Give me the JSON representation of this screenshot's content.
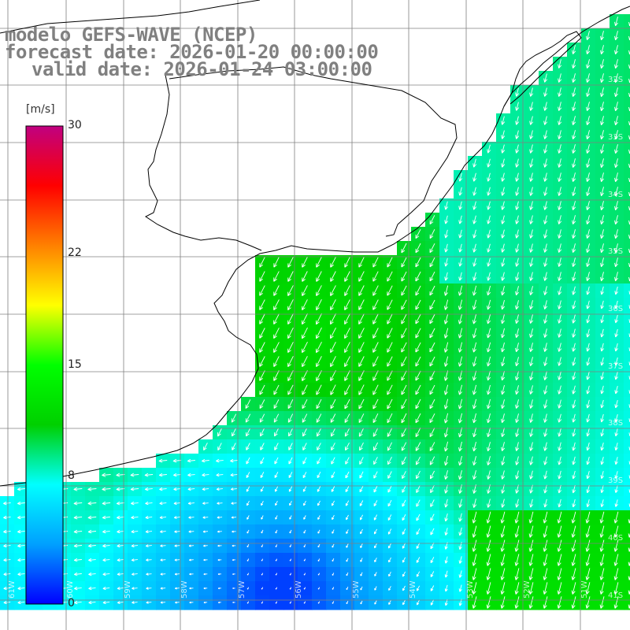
{
  "title": {
    "line1": "modelo GEFS-WAVE (NCEP)",
    "line2": "forecast date: 2026-01-20 00:00:00",
    "line3": "valid date: 2026-01-24 03:00:00"
  },
  "colorbar": {
    "unit": "[m/s]",
    "min": 0,
    "max": 30,
    "ticks": [
      "30",
      "22",
      "15",
      "8",
      "0"
    ],
    "tick_values": [
      30,
      22,
      15,
      8,
      0
    ],
    "stops": [
      "#0000ff",
      "#00a0ff",
      "#00ffff",
      "#00d000",
      "#00ff00",
      "#ffff00",
      "#ff8000",
      "#ff0000",
      "#c00080"
    ]
  },
  "grid": {
    "lat_labels": [
      "32S",
      "33S",
      "34S",
      "35S",
      "36S",
      "37S",
      "38S",
      "39S",
      "40S",
      "41S"
    ],
    "lon_labels": [
      "61W",
      "60W",
      "59W",
      "58W",
      "57W",
      "56W",
      "55W",
      "54W",
      "53W",
      "52W",
      "51W"
    ]
  },
  "colors": {
    "land": "#ffffff",
    "coast": "#000000",
    "grid": "#808080",
    "arrow": "#ffffff"
  }
}
